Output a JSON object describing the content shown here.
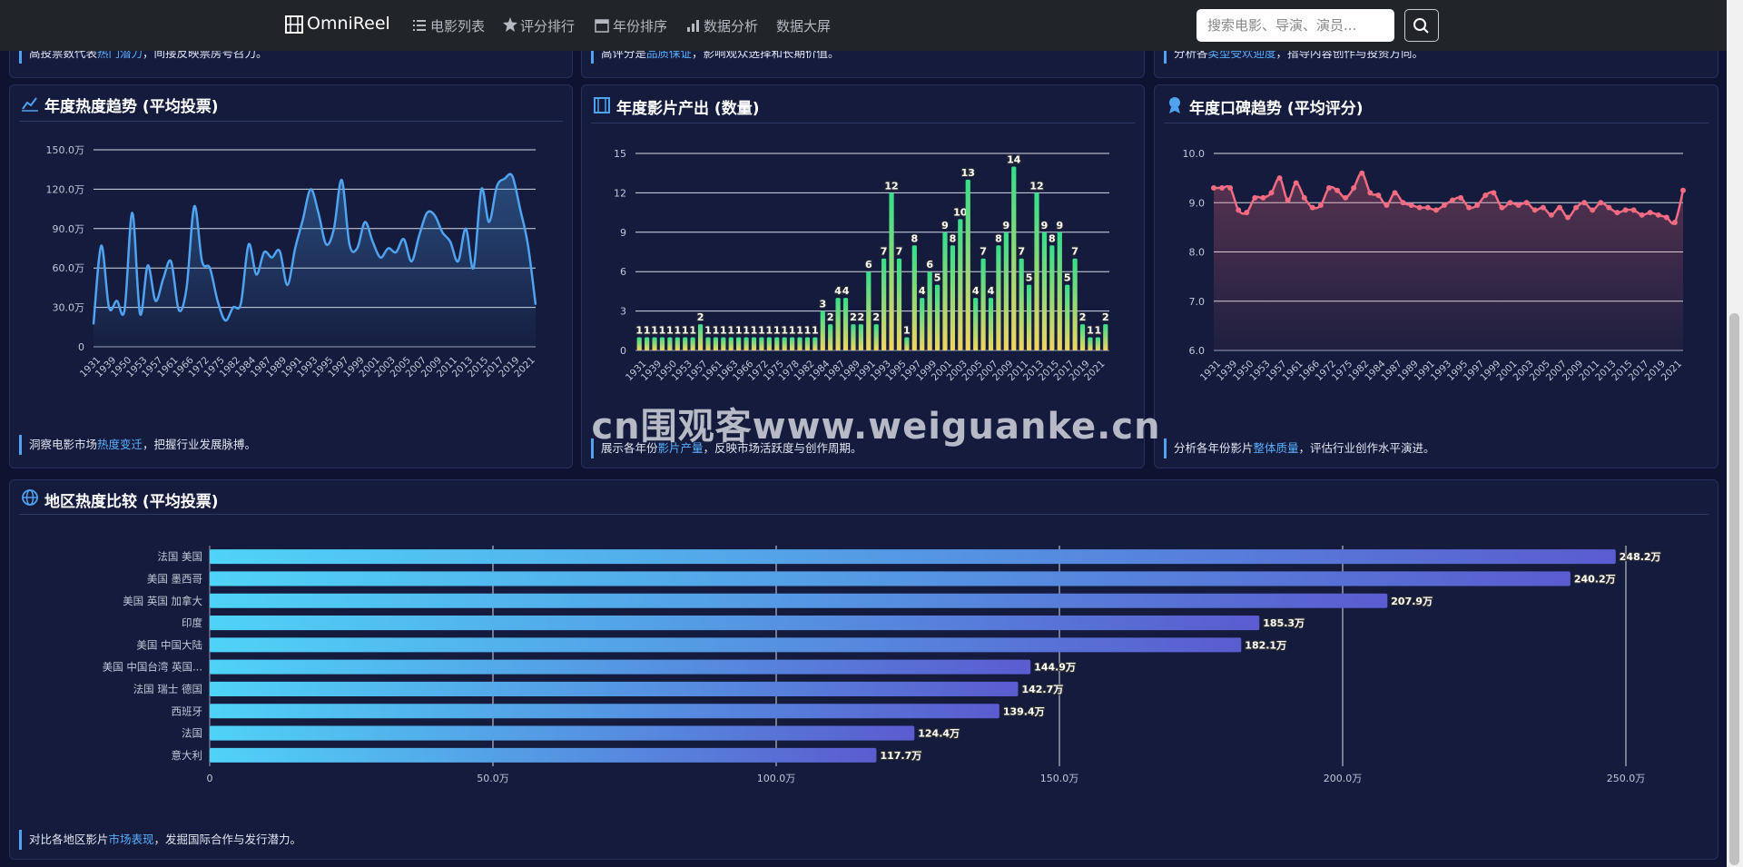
{
  "nav": {
    "brand": "OmniReel",
    "links": [
      "电影列表",
      "评分排行",
      "年份排序",
      "数据分析",
      "数据大屏"
    ],
    "search_placeholder": "搜索电影、导演、演员..."
  },
  "top_cards": [
    {
      "before": "高投票数代表",
      "highlight": "热门潜力",
      "after": "，间接反映票房号召力。"
    },
    {
      "before": "高评分是",
      "highlight": "品质保证",
      "after": "，影响观众选择和长期价值。"
    },
    {
      "before": "分析各",
      "highlight": "类型受欢迎度",
      "after": "，指导内容创作与投资方向。"
    }
  ],
  "chart_data": [
    {
      "type": "line",
      "title": "年度热度趋势 (平均投票)",
      "categories": [
        "1931",
        null,
        "1939",
        null,
        "1950",
        null,
        "1953",
        null,
        "1957",
        null,
        "1961",
        null,
        "1966",
        null,
        "1972",
        null,
        "1975",
        null,
        "1982",
        null,
        "1984",
        null,
        "1987",
        null,
        "1989",
        null,
        "1991",
        null,
        "1993",
        null,
        "1995",
        null,
        "1997",
        null,
        "1999",
        null,
        "2001",
        null,
        "2003",
        null,
        "2005",
        null,
        "2007",
        null,
        "2009",
        null,
        "2011",
        null,
        "2013",
        null,
        "2015",
        null,
        "2017",
        null,
        "2019",
        null,
        "2021",
        null
      ],
      "values": [
        17,
        77,
        30,
        35,
        28,
        102,
        25,
        62,
        35,
        52,
        65,
        28,
        45,
        107,
        65,
        60,
        35,
        20,
        30,
        33,
        78,
        55,
        72,
        68,
        73,
        47,
        75,
        97,
        120,
        102,
        78,
        90,
        127,
        78,
        75,
        95,
        80,
        68,
        75,
        72,
        82,
        65,
        85,
        102,
        100,
        87,
        80,
        65,
        90,
        60,
        120,
        95,
        122,
        128,
        130,
        105,
        78,
        32
      ],
      "color": "#4fa3f0",
      "smooth": true,
      "ylim": [
        0,
        150
      ],
      "yticks": [
        0,
        {
          "value": 30,
          "label": "30.0万"
        },
        {
          "value": 60,
          "label": "60.0万"
        },
        {
          "value": 90,
          "label": "90.0万"
        },
        {
          "value": 120,
          "label": "120.0万"
        },
        {
          "value": 150,
          "label": "150.0万"
        }
      ],
      "grid": true,
      "note": {
        "before": "洞察电影市场",
        "highlight": "热度变迁",
        "after": "，把握行业发展脉搏。"
      }
    },
    {
      "type": "bar",
      "title": "年度影片产出 (数量)",
      "categories": [
        "1931",
        null,
        "1939",
        null,
        "1950",
        null,
        "1953",
        null,
        "1957",
        null,
        "1961",
        null,
        "1963",
        null,
        "1966",
        null,
        "1972",
        null,
        "1975",
        null,
        "1978",
        null,
        "1982",
        null,
        "1984",
        null,
        "1987",
        null,
        "1989",
        null,
        "1991",
        null,
        "1993",
        null,
        "1995",
        null,
        "1997",
        null,
        "1999",
        null,
        "2001",
        null,
        "2003",
        null,
        "2005",
        null,
        "2007",
        null,
        "2009",
        null,
        "2011",
        null,
        "2013",
        null,
        "2015",
        null,
        "2017",
        null,
        "2019",
        null,
        "2021",
        null
      ],
      "values": [
        1,
        1,
        1,
        1,
        1,
        1,
        1,
        1,
        2,
        1,
        1,
        1,
        1,
        1,
        1,
        1,
        1,
        1,
        1,
        1,
        1,
        1,
        1,
        1,
        3,
        2,
        4,
        4,
        2,
        2,
        6,
        2,
        7,
        12,
        7,
        1,
        8,
        4,
        6,
        5,
        9,
        8,
        10,
        13,
        4,
        7,
        4,
        8,
        9,
        14,
        7,
        5,
        12,
        9,
        8,
        9,
        5,
        7,
        2,
        1,
        1,
        2
      ],
      "colors": [
        "#36de8a",
        "#f2d462"
      ],
      "ylim": [
        0,
        15
      ],
      "yticks": [
        0,
        3,
        6,
        9,
        12,
        15
      ],
      "grid": true,
      "data_labels": true,
      "note": {
        "before": "展示各年份",
        "highlight": "影片产量",
        "after": "，反映市场活跃度与创作周期。"
      }
    },
    {
      "type": "line",
      "title": "年度口碑趋势 (平均评分)",
      "categories": [
        "1931",
        null,
        "1939",
        null,
        "1950",
        null,
        "1953",
        null,
        "1957",
        null,
        "1961",
        null,
        "1966",
        null,
        "1972",
        null,
        "1975",
        null,
        "1982",
        null,
        "1984",
        null,
        "1987",
        null,
        "1989",
        null,
        "1991",
        null,
        "1993",
        null,
        "1995",
        null,
        "1997",
        null,
        "1999",
        null,
        "2001",
        null,
        "2003",
        null,
        "2005",
        null,
        "2007",
        null,
        "2009",
        null,
        "2011",
        null,
        "2013",
        null,
        "2015",
        null,
        "2017",
        null,
        "2019",
        null,
        "2021",
        null
      ],
      "values": [
        9.3,
        9.3,
        9.3,
        8.85,
        8.8,
        9.1,
        9.1,
        9.2,
        9.5,
        9.05,
        9.4,
        9.1,
        8.9,
        8.95,
        9.3,
        9.25,
        9.1,
        9.3,
        9.6,
        9.2,
        9.15,
        8.95,
        9.2,
        9,
        8.95,
        8.9,
        8.9,
        8.85,
        8.95,
        9.05,
        9.1,
        8.9,
        8.95,
        9.15,
        9.2,
        8.9,
        9,
        8.95,
        9,
        8.85,
        8.9,
        8.75,
        8.9,
        8.7,
        8.9,
        9,
        8.85,
        9,
        8.9,
        8.8,
        8.85,
        8.85,
        8.75,
        8.8,
        8.75,
        8.7,
        8.6,
        9.25
      ],
      "color": "#f26b80",
      "smooth": true,
      "markers": true,
      "ylim": [
        6,
        10
      ],
      "yticks": [
        {
          "value": 6,
          "label": "6.0"
        },
        {
          "value": 7,
          "label": "7.0"
        },
        {
          "value": 8,
          "label": "8.0"
        },
        {
          "value": 9,
          "label": "9.0"
        },
        {
          "value": 10,
          "label": "10.0"
        }
      ],
      "grid": true,
      "note": {
        "before": "分析各年份影片",
        "highlight": "整体质量",
        "after": "，评估行业创作水平演进。"
      }
    },
    {
      "type": "hbar",
      "title": "地区热度比较 (平均投票)",
      "categories": [
        "法国 美国",
        "美国 墨西哥",
        "美国 英国 加拿大",
        "印度",
        "美国 中国大陆",
        "美国 中国台湾 英国...",
        "法国 瑞士 德国",
        "西班牙",
        "法国",
        "意大利"
      ],
      "values": [
        248.2,
        240.2,
        207.9,
        185.3,
        182.1,
        144.9,
        142.7,
        139.4,
        124.4,
        117.7
      ],
      "value_labels": [
        "248.2万",
        "240.2万",
        "207.9万",
        "185.3万",
        "182.1万",
        "144.9万",
        "142.7万",
        "139.4万",
        "124.4万",
        "117.7万"
      ],
      "colors": [
        "#4fd3f7",
        "#5a5ccf"
      ],
      "xlim": [
        0,
        250
      ],
      "xticks": [
        0,
        {
          "value": 50,
          "label": "50.0万"
        },
        {
          "value": 100,
          "label": "100.0万"
        },
        {
          "value": 150,
          "label": "150.0万"
        },
        {
          "value": 200,
          "label": "200.0万"
        },
        {
          "value": 250,
          "label": "250.0万"
        }
      ],
      "grid": true,
      "note": {
        "before": "对比各地区影片",
        "highlight": "市场表现",
        "after": "，发掘国际合作与发行潜力。"
      }
    }
  ],
  "watermark": "cn围观客www.weiguanke.cn"
}
